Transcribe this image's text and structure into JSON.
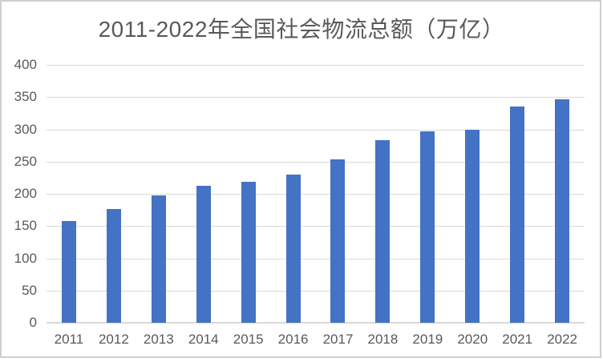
{
  "frame": {
    "background": "#ffffff",
    "border_color": "#d0cece"
  },
  "chart_data": {
    "type": "bar",
    "title": "2011-2022年全国社会物流总额（万亿）",
    "categories": [
      "2011",
      "2012",
      "2013",
      "2014",
      "2015",
      "2016",
      "2017",
      "2018",
      "2019",
      "2020",
      "2021",
      "2022"
    ],
    "values": [
      158,
      177,
      198,
      213,
      219,
      230,
      253,
      283,
      297,
      300,
      335,
      347
    ],
    "xlabel": "",
    "ylabel": "",
    "ylim": [
      0,
      400
    ],
    "yticks": [
      0,
      50,
      100,
      150,
      200,
      250,
      300,
      350,
      400
    ],
    "grid": true,
    "legend_position": "none",
    "colors": {
      "bar": "#4472c4",
      "gridline": "#d9d9d9",
      "axis_line": "#d9d9d9",
      "tick_text": "#595959",
      "title_text": "#595959"
    }
  }
}
